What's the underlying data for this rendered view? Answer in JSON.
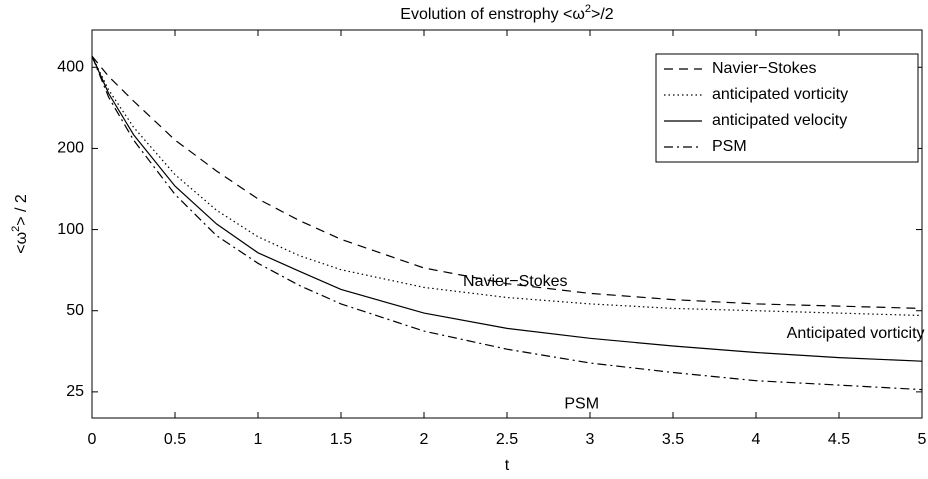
{
  "chart_data": {
    "type": "line",
    "title": [
      "Evolution of enstrophy <ω",
      "2",
      ">/2"
    ],
    "x_label": "t",
    "y_label": [
      "<ω",
      "2",
      "> / 2"
    ],
    "log_y": true,
    "legend": "upper right",
    "xlim": [
      0,
      5
    ],
    "ylim": [
      20,
      550
    ],
    "xticks": [
      0,
      0.5,
      1,
      1.5,
      2,
      2.5,
      3,
      3.5,
      4,
      4.5,
      5
    ],
    "yticks": [
      25,
      50,
      100,
      200,
      400
    ],
    "x": [
      0,
      0.1,
      0.25,
      0.5,
      0.75,
      1,
      1.25,
      1.5,
      2,
      2.5,
      3,
      3.5,
      4,
      4.5,
      5
    ],
    "series": [
      {
        "name": "Navier−Stokes",
        "color": "#000000",
        "dash": "dashed",
        "values": [
          440,
          370,
          300,
          215,
          165,
          130,
          108,
          92,
          72,
          63,
          58,
          55,
          53,
          52,
          51
        ]
      },
      {
        "name": "anticipated vorticity",
        "color": "#000000",
        "dash": "dotted",
        "values": [
          440,
          330,
          240,
          160,
          118,
          94,
          80,
          71,
          61,
          56,
          53,
          51,
          50,
          49,
          48
        ]
      },
      {
        "name": "anticipated velocity",
        "color": "#000000",
        "dash": "solid",
        "values": [
          440,
          320,
          225,
          145,
          105,
          82,
          70,
          60,
          49,
          43,
          39.5,
          37,
          35,
          33.5,
          32.5
        ]
      },
      {
        "name": "PSM",
        "color": "#000000",
        "dash": "dashdot",
        "values": [
          440,
          310,
          215,
          135,
          95,
          75,
          62,
          53,
          42,
          36,
          32,
          29.5,
          27.5,
          26.5,
          25.5
        ]
      }
    ],
    "annotations": [
      {
        "text": "Navier−Stokes",
        "x": 2.55,
        "y": 64
      },
      {
        "text": "Anticipated vorticity",
        "x": 4.6,
        "y": 41
      },
      {
        "text": "PSM",
        "x": 2.95,
        "y": 22.5
      }
    ]
  }
}
